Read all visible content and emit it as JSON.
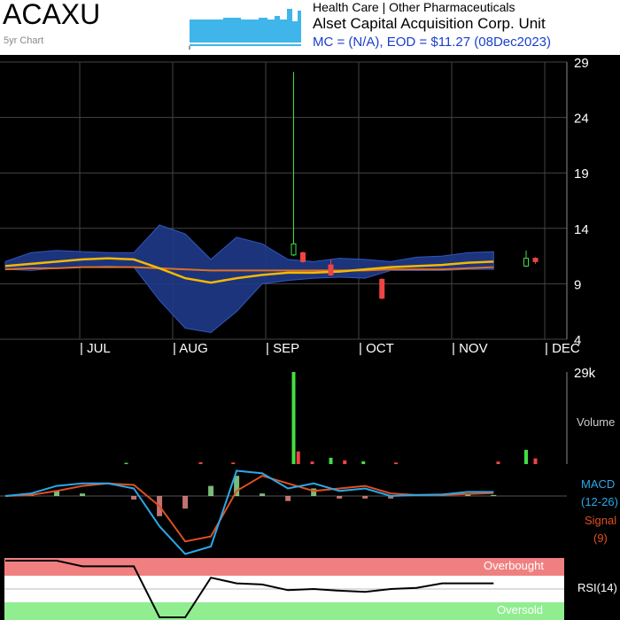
{
  "header": {
    "ticker": "ACAXU",
    "chart_span": "5yr Chart",
    "sector": "Health Care | Other Pharmaceuticals",
    "company": "Alset Capital Acquisition Corp. Unit",
    "eod_line": "MC = (N/A), EOD = $11.27 (08Dec2023)"
  },
  "colors": {
    "background": "#000000",
    "bollinger_band": "#1e3a8a",
    "ma_short": "#f5b800",
    "ma_long": "#e07020",
    "up_candle": "#44dd44",
    "down_candle": "#ee4444",
    "macd_line": "#2aa8e8",
    "signal_line": "#e05020",
    "rsi_line": "#000000",
    "overbought": "#f08080",
    "oversold": "#90ee90"
  },
  "chart_data": [
    {
      "type": "candlestick",
      "x_labels": [
        "JUL",
        "AUG",
        "SEP",
        "OCT",
        "NOV",
        "DEC"
      ],
      "y_ticks": [
        4,
        9,
        14,
        19,
        24,
        29
      ],
      "ylim": [
        4,
        29
      ],
      "bollinger_upper": [
        11.0,
        11.8,
        12.0,
        11.9,
        11.8,
        11.8,
        14.3,
        13.5,
        11.2,
        13.2,
        12.6,
        11.2,
        11.0,
        11.3,
        11.2,
        11.0,
        11.4,
        11.5,
        11.8,
        11.9
      ],
      "bollinger_lower": [
        10.3,
        10.2,
        10.4,
        10.5,
        10.6,
        10.5,
        7.5,
        5.0,
        4.6,
        6.5,
        9.0,
        9.3,
        9.5,
        9.6,
        9.5,
        10.2,
        10.2,
        10.2,
        10.3,
        10.3
      ],
      "ma_short": [
        10.6,
        10.8,
        11.0,
        11.2,
        11.3,
        11.2,
        10.4,
        9.5,
        9.1,
        9.5,
        9.8,
        10.0,
        10.0,
        10.1,
        10.3,
        10.5,
        10.6,
        10.7,
        10.9,
        11.0
      ],
      "ma_long": [
        10.3,
        10.4,
        10.4,
        10.5,
        10.5,
        10.5,
        10.4,
        10.3,
        10.2,
        10.2,
        10.2,
        10.2,
        10.2,
        10.2,
        10.2,
        10.3,
        10.3,
        10.3,
        10.4,
        10.5
      ],
      "candles": [
        {
          "x": 2.3,
          "open": 11.6,
          "close": 12.6,
          "high": 28.1,
          "low": 11.5,
          "dir": "up"
        },
        {
          "x": 2.4,
          "open": 11.8,
          "close": 11.0,
          "high": 11.9,
          "low": 10.9,
          "dir": "down"
        },
        {
          "x": 2.7,
          "open": 10.7,
          "close": 9.8,
          "high": 11.2,
          "low": 9.7,
          "dir": "down"
        },
        {
          "x": 3.25,
          "open": 9.4,
          "close": 7.7,
          "high": 9.5,
          "low": 7.6,
          "dir": "down"
        },
        {
          "x": 4.8,
          "open": 10.6,
          "close": 11.3,
          "high": 12.0,
          "low": 10.5,
          "dir": "up"
        },
        {
          "x": 4.9,
          "open": 11.3,
          "close": 11.0,
          "high": 11.4,
          "low": 10.8,
          "dir": "down"
        }
      ]
    },
    {
      "type": "bar",
      "label": "Volume",
      "y_ticks_labels": [
        "29k"
      ],
      "ymax": 29000,
      "bars": [
        {
          "x": 0.5,
          "value": 400,
          "dir": "up"
        },
        {
          "x": 1.3,
          "value": 600,
          "dir": "down"
        },
        {
          "x": 1.65,
          "value": 500,
          "dir": "down"
        },
        {
          "x": 2.3,
          "value": 29000,
          "dir": "up"
        },
        {
          "x": 2.35,
          "value": 4000,
          "dir": "down"
        },
        {
          "x": 2.5,
          "value": 800,
          "dir": "down"
        },
        {
          "x": 2.7,
          "value": 2000,
          "dir": "up"
        },
        {
          "x": 2.85,
          "value": 1200,
          "dir": "down"
        },
        {
          "x": 3.05,
          "value": 900,
          "dir": "up"
        },
        {
          "x": 3.4,
          "value": 500,
          "dir": "down"
        },
        {
          "x": 4.5,
          "value": 800,
          "dir": "down"
        },
        {
          "x": 4.8,
          "value": 4500,
          "dir": "up"
        },
        {
          "x": 4.9,
          "value": 1800,
          "dir": "down"
        }
      ]
    },
    {
      "type": "line",
      "title": "MACD",
      "macd_label": "MACD",
      "macd_params": "(12-26)",
      "signal_label": "Signal",
      "signal_params": "(9)",
      "macd": [
        0.0,
        0.05,
        0.2,
        0.25,
        0.25,
        0.15,
        -0.6,
        -1.15,
        -1.0,
        0.5,
        0.45,
        0.15,
        0.25,
        0.1,
        0.15,
        0.0,
        0.02,
        0.03,
        0.08,
        0.08
      ],
      "signal": [
        0.0,
        0.02,
        0.1,
        0.2,
        0.25,
        0.22,
        -0.2,
        -0.9,
        -0.8,
        0.1,
        0.4,
        0.25,
        0.1,
        0.15,
        0.2,
        0.05,
        0.02,
        0.02,
        0.04,
        0.06
      ],
      "histogram": [
        0.0,
        0.03,
        0.1,
        0.05,
        0.0,
        -0.07,
        -0.4,
        -0.25,
        0.2,
        0.4,
        0.05,
        -0.1,
        0.15,
        -0.05,
        -0.05,
        -0.05,
        0.0,
        0.01,
        0.04,
        0.02
      ]
    },
    {
      "type": "line",
      "title": "RSI",
      "rsi_label": "RSI(14)",
      "overbought_label": "Overbought",
      "oversold_label": "Oversold",
      "rsi": [
        100,
        100,
        100,
        90,
        90,
        90,
        0,
        0,
        70,
        60,
        58,
        48,
        50,
        47,
        45,
        50,
        52,
        60,
        60,
        60
      ]
    }
  ]
}
